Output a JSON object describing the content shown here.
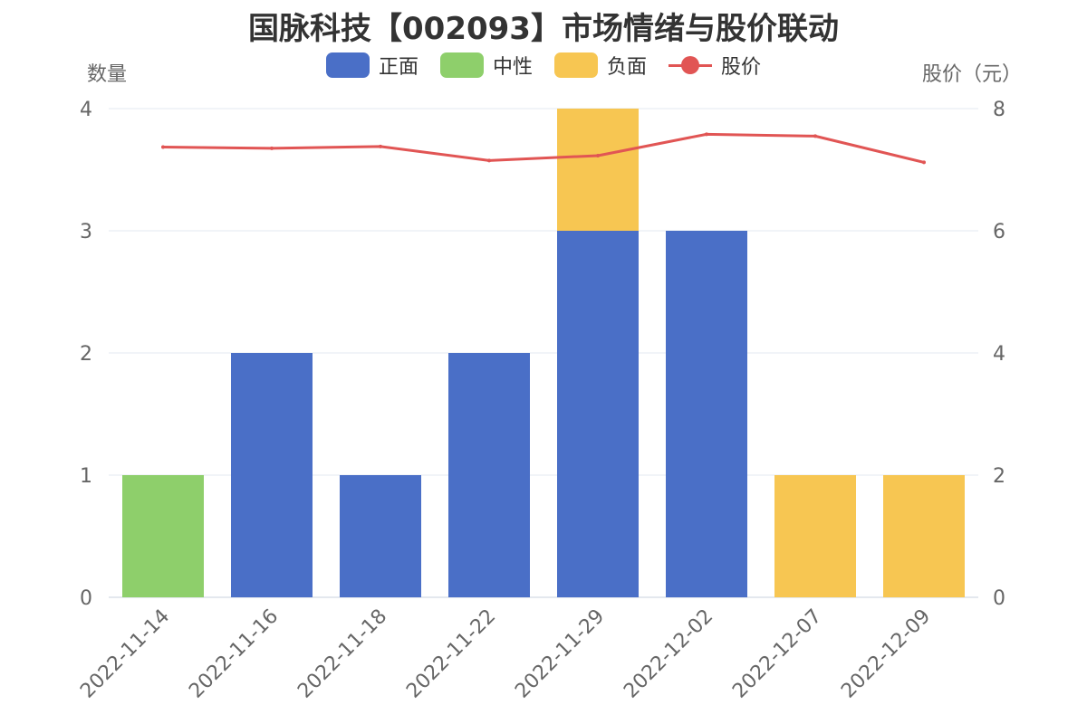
{
  "chart_data": {
    "type": "bar",
    "title": "国脉科技【002093】市场情绪与股价联动",
    "y_left_label": "数量",
    "y_right_label": "股价（元）",
    "categories": [
      "2022-11-14",
      "2022-11-16",
      "2022-11-18",
      "2022-11-22",
      "2022-11-29",
      "2022-12-02",
      "2022-12-07",
      "2022-12-09"
    ],
    "series": [
      {
        "name": "正面",
        "type": "bar",
        "color": "#4a6fc7",
        "values": [
          0,
          2,
          1,
          2,
          3,
          3,
          0,
          0
        ]
      },
      {
        "name": "中性",
        "type": "bar",
        "color": "#8ecf6b",
        "values": [
          1,
          0,
          0,
          0,
          0,
          0,
          0,
          0
        ]
      },
      {
        "name": "负面",
        "type": "bar",
        "color": "#f7c652",
        "values": [
          0,
          0,
          0,
          0,
          1,
          0,
          1,
          1
        ]
      },
      {
        "name": "股价",
        "type": "line",
        "color": "#e15554",
        "values": [
          7.37,
          7.35,
          7.38,
          7.15,
          7.23,
          7.58,
          7.55,
          7.12
        ]
      }
    ],
    "y_left": {
      "range": [
        0,
        4
      ],
      "ticks": [
        "0",
        "1",
        "2",
        "3",
        "4"
      ]
    },
    "y_right": {
      "range": [
        0,
        8
      ],
      "ticks": [
        "0",
        "2",
        "4",
        "6",
        "8"
      ]
    },
    "stacked": true,
    "grid": true,
    "legend_position": "top"
  }
}
